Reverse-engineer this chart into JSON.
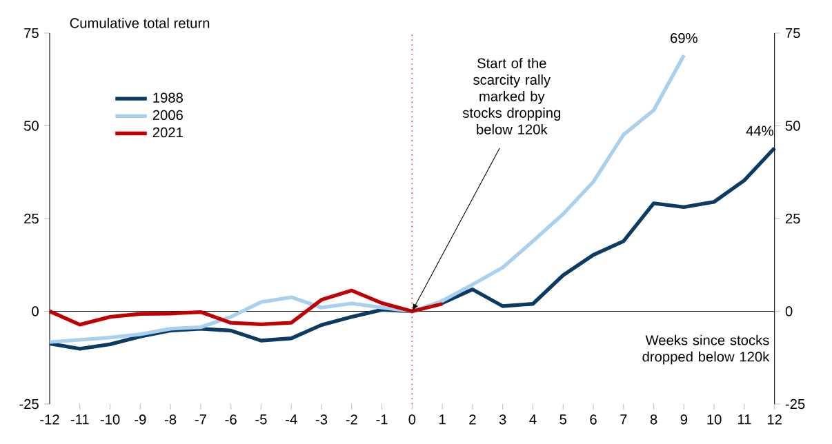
{
  "chart_data": {
    "type": "line",
    "ylabel": "Cumulative total return",
    "xlabel": "Weeks since stocks dropped below 120k",
    "x": [
      -12,
      -11,
      -10,
      -9,
      -8,
      -7,
      -6,
      -5,
      -4,
      -3,
      -2,
      -1,
      0,
      1,
      2,
      3,
      4,
      5,
      6,
      7,
      8,
      9,
      10,
      11,
      12
    ],
    "series": [
      {
        "name": "1988",
        "color": "#0b3a63",
        "values": [
          -8.7,
          -10.1,
          -8.9,
          -6.8,
          -5.2,
          -4.7,
          -5.2,
          -7.9,
          -7.3,
          -3.7,
          -1.5,
          0.4,
          0,
          2.2,
          5.9,
          1.4,
          2.0,
          9.7,
          15.2,
          18.9,
          29.1,
          28.1,
          29.5,
          35.3,
          44
        ]
      },
      {
        "name": "2006",
        "color": "#a9d0ee",
        "values": [
          -8.3,
          -7.7,
          -7.1,
          -6.2,
          -4.7,
          -4.3,
          -1.5,
          2.5,
          3.8,
          1.0,
          2.1,
          1.0,
          0,
          2.8,
          7.2,
          11.8,
          18.9,
          26.2,
          34.9,
          47.6,
          54.2,
          69,
          null,
          null,
          null
        ]
      },
      {
        "name": "2021",
        "color": "#c00000",
        "values": [
          0,
          -3.6,
          -1.5,
          -0.7,
          -0.6,
          -0.2,
          -3.1,
          -3.5,
          -3.1,
          3.1,
          5.6,
          2.2,
          0,
          2.0,
          null,
          null,
          null,
          null,
          null,
          null,
          null,
          null,
          null,
          null,
          null
        ]
      }
    ],
    "xlim": [
      -12,
      12
    ],
    "xticks": [
      -12,
      -11,
      -10,
      -9,
      -8,
      -7,
      -6,
      -5,
      -4,
      -3,
      -2,
      -1,
      0,
      1,
      2,
      3,
      4,
      5,
      6,
      7,
      8,
      9,
      10,
      11,
      12
    ],
    "ylim": [
      -25,
      75
    ],
    "yticks": [
      -25,
      0,
      25,
      50,
      75
    ],
    "y2lim": [
      -25,
      75
    ],
    "y2ticks": [
      -25,
      0,
      25,
      50,
      75
    ],
    "ref_lines": [
      {
        "axis": "x",
        "value": 0,
        "color": "#e03030",
        "line_style": "dotted"
      }
    ],
    "annotations": [
      {
        "text": "69%",
        "x": 9,
        "y": 69
      },
      {
        "text": "44%",
        "x": 12,
        "y": 44
      },
      {
        "text": "Start of the scarcity rally marked by stocks dropping below 120k",
        "x": 0,
        "y": 0
      }
    ],
    "legend": "top left",
    "marker": "none",
    "line_style": "solid",
    "grid": false
  }
}
